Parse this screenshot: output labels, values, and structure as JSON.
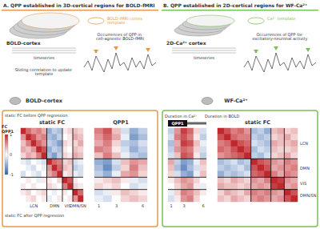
{
  "panels": [
    {
      "label": "A.",
      "title": "QPP established in 3D-cortical regions for BOLD-fMRI",
      "color": "#e39b4b",
      "cortex": "BOLD-cortex",
      "template": "BOLD-fMRI cortex template",
      "timeseries": "timeseries",
      "occurrences": "Occurrences of QPP in cell-agnostic BOLD-fMRI",
      "sliding": "Sliding correlation to update template",
      "modality": "BOLD-cortex"
    },
    {
      "label": "B.",
      "title": "QPP established in 2D-cortical regions for WF-Ca²⁺",
      "color": "#7cbf5a",
      "cortex": "2D-Ca²⁺ cortex",
      "template": "Ca²⁺ template",
      "timeseries": "timeseries",
      "occurrences": "Occurrences of QPP for excitatory-neuronal activity",
      "modality": "WF-Ca²⁺"
    }
  ],
  "annotations": {
    "before": "static FC before QPP regression",
    "after": "static FC after QPP regression",
    "duration_ca": "Duration in Ca²⁺",
    "duration_bold": "Duration in BOLD"
  },
  "networks": [
    {
      "name": "LCN",
      "size": 5
    },
    {
      "name": "DMN",
      "size": 3
    },
    {
      "name": "VIS",
      "size": 2
    },
    {
      "name": "DMN/SN",
      "size": 2
    }
  ],
  "colorbar": {
    "title": [
      "FC",
      "QPP1"
    ],
    "range": [
      -1,
      1
    ],
    "ticks": [
      1,
      0,
      -1
    ],
    "colors": [
      "#2c5fa8",
      "#ffffff",
      "#c0282d"
    ]
  },
  "chart_data": [
    {
      "type": "heatmap",
      "title": "static FC",
      "tick_labels": "x",
      "cells": [
        [
          1,
          0.7,
          0.5,
          0.6,
          0.4,
          -0.5,
          -0.3,
          -0.4,
          0.1,
          0.2,
          0.3,
          0.2
        ],
        [
          0.5,
          1,
          0.8,
          0.5,
          0.6,
          -0.4,
          -0.5,
          -0.3,
          0.0,
          0.1,
          0.4,
          0.3
        ],
        [
          0.3,
          0.6,
          1,
          0.7,
          0.5,
          -0.3,
          -0.4,
          -0.6,
          0.2,
          0.1,
          0.2,
          0.4
        ],
        [
          0.4,
          0.3,
          0.5,
          1,
          0.8,
          -0.5,
          -0.3,
          -0.4,
          0.1,
          0.0,
          0.3,
          0.2
        ],
        [
          0.2,
          0.4,
          0.3,
          0.6,
          1,
          -0.4,
          -0.6,
          -0.3,
          0.2,
          0.1,
          0.4,
          0.3
        ],
        [
          -0.1,
          -0.2,
          0.0,
          -0.1,
          -0.2,
          1,
          0.7,
          0.6,
          0.2,
          0.3,
          -0.2,
          -0.1
        ],
        [
          0.0,
          -0.1,
          -0.2,
          0.0,
          -0.1,
          0.5,
          1,
          0.7,
          0.3,
          0.2,
          -0.3,
          -0.2
        ],
        [
          -0.2,
          0.0,
          -0.1,
          -0.2,
          0.0,
          0.4,
          0.6,
          1,
          0.1,
          0.2,
          -0.1,
          -0.2
        ],
        [
          0.0,
          0.1,
          0.0,
          -0.1,
          0.1,
          0.1,
          0.0,
          0.2,
          1,
          0.8,
          0.1,
          0.0
        ],
        [
          0.1,
          0.0,
          0.1,
          0.0,
          0.0,
          0.2,
          0.1,
          0.0,
          0.6,
          1,
          0.2,
          0.1
        ],
        [
          0.1,
          0.2,
          0.0,
          0.1,
          0.2,
          0.0,
          -0.1,
          0.0,
          0.1,
          0.0,
          1,
          0.7
        ],
        [
          0.0,
          0.1,
          0.2,
          0.0,
          0.1,
          -0.1,
          0.0,
          0.1,
          0.0,
          0.1,
          0.5,
          1
        ]
      ]
    },
    {
      "type": "heatmap",
      "title": "QPP1",
      "tick_labels": "x",
      "x": [
        "1",
        null,
        "3",
        null,
        null,
        "6"
      ],
      "cells": [
        [
          0.6,
          0.8,
          0.3,
          -0.2,
          -0.5,
          -0.3
        ],
        [
          0.5,
          0.7,
          0.4,
          -0.1,
          -0.6,
          -0.4
        ],
        [
          0.4,
          0.6,
          0.2,
          -0.3,
          -0.4,
          -0.2
        ],
        [
          0.6,
          0.5,
          0.1,
          -0.2,
          -0.5,
          -0.3
        ],
        [
          0.3,
          0.6,
          0.3,
          -0.1,
          -0.3,
          -0.4
        ],
        [
          -0.5,
          -0.6,
          -0.2,
          0.3,
          0.5,
          0.4
        ],
        [
          -0.4,
          -0.7,
          -0.3,
          0.2,
          0.6,
          0.3
        ],
        [
          -0.3,
          -0.5,
          -0.1,
          0.4,
          0.5,
          0.2
        ],
        [
          0.1,
          0.2,
          0.3,
          0.1,
          -0.1,
          -0.2
        ],
        [
          0.2,
          0.1,
          0.2,
          0.0,
          -0.2,
          -0.1
        ],
        [
          -0.2,
          -0.1,
          0.1,
          0.3,
          0.2,
          0.1
        ],
        [
          -0.1,
          -0.2,
          0.0,
          0.2,
          0.3,
          0.2
        ]
      ]
    },
    {
      "type": "heatmap",
      "title": "QPP1",
      "tick_labels": "x",
      "x": [
        "1",
        null,
        "3",
        null,
        null,
        "6"
      ],
      "cells": [
        [
          -0.3,
          0.5,
          0.9,
          0.7,
          0.2,
          -0.2
        ],
        [
          -0.2,
          0.6,
          0.8,
          0.6,
          0.1,
          -0.3
        ],
        [
          -0.4,
          0.4,
          0.9,
          0.8,
          0.3,
          -0.1
        ],
        [
          -0.3,
          0.5,
          0.7,
          0.6,
          0.2,
          -0.2
        ],
        [
          -0.2,
          0.3,
          0.8,
          0.7,
          0.1,
          -0.3
        ],
        [
          0.4,
          -0.3,
          -0.6,
          -0.5,
          -0.1,
          0.3
        ],
        [
          0.3,
          -0.4,
          -0.7,
          -0.4,
          -0.2,
          0.2
        ],
        [
          0.2,
          -0.2,
          -0.5,
          -0.6,
          -0.1,
          0.3
        ],
        [
          0.1,
          0.3,
          0.5,
          0.4,
          0.2,
          0.0
        ],
        [
          0.0,
          0.2,
          0.4,
          0.5,
          0.1,
          -0.1
        ],
        [
          -0.1,
          0.2,
          0.6,
          0.5,
          0.3,
          0.1
        ],
        [
          -0.2,
          0.1,
          0.5,
          0.6,
          0.2,
          0.0
        ]
      ]
    },
    {
      "type": "heatmap",
      "title": "static FC",
      "tick_labels": "y",
      "cells": [
        [
          1,
          0.8,
          0.6,
          0.7,
          0.5,
          -0.4,
          -0.3,
          -0.5,
          0.3,
          0.4,
          0.2,
          0.3
        ],
        [
          0.8,
          1,
          0.7,
          0.6,
          0.6,
          -0.3,
          -0.4,
          -0.3,
          0.2,
          0.3,
          0.4,
          0.2
        ],
        [
          0.6,
          0.7,
          1,
          0.8,
          0.7,
          -0.2,
          -0.3,
          -0.4,
          0.4,
          0.3,
          0.3,
          0.4
        ],
        [
          0.7,
          0.6,
          0.8,
          1,
          0.8,
          -0.4,
          -0.2,
          -0.3,
          0.3,
          0.2,
          0.2,
          0.3
        ],
        [
          0.5,
          0.6,
          0.7,
          0.8,
          1,
          -0.3,
          -0.4,
          -0.2,
          0.2,
          0.3,
          0.4,
          0.2
        ],
        [
          -0.4,
          -0.3,
          -0.2,
          -0.4,
          -0.3,
          1,
          0.8,
          0.7,
          0.5,
          0.4,
          0.6,
          0.5
        ],
        [
          -0.3,
          -0.4,
          -0.3,
          -0.2,
          -0.4,
          0.8,
          1,
          0.8,
          0.4,
          0.5,
          0.5,
          0.6
        ],
        [
          -0.5,
          -0.3,
          -0.4,
          -0.3,
          -0.2,
          0.7,
          0.8,
          1,
          0.6,
          0.4,
          0.6,
          0.5
        ],
        [
          0.3,
          0.2,
          0.4,
          0.3,
          0.2,
          0.5,
          0.4,
          0.6,
          1,
          0.9,
          0.5,
          0.4
        ],
        [
          0.4,
          0.3,
          0.3,
          0.2,
          0.3,
          0.4,
          0.5,
          0.4,
          0.9,
          1,
          0.4,
          0.5
        ],
        [
          0.2,
          0.4,
          0.3,
          0.2,
          0.4,
          0.6,
          0.5,
          0.6,
          0.5,
          0.4,
          1,
          0.8
        ],
        [
          0.3,
          0.2,
          0.4,
          0.3,
          0.2,
          0.5,
          0.6,
          0.5,
          0.4,
          0.5,
          0.8,
          1
        ]
      ]
    }
  ]
}
